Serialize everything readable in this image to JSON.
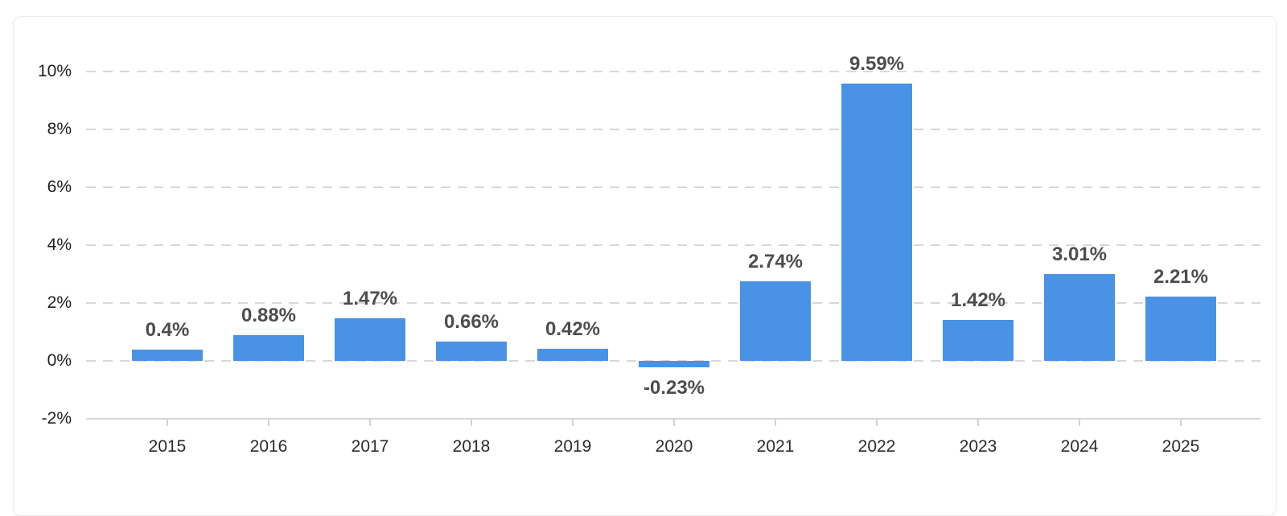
{
  "chart_data": {
    "type": "bar",
    "title": "",
    "xlabel": "",
    "ylabel": "",
    "categories": [
      "2015",
      "2016",
      "2017",
      "2018",
      "2019",
      "2020",
      "2021",
      "2022",
      "2023",
      "2024",
      "2025"
    ],
    "values": [
      0.4,
      0.88,
      1.47,
      0.66,
      0.42,
      -0.23,
      2.74,
      9.59,
      1.42,
      3.01,
      2.21
    ],
    "value_labels": [
      "0.4%",
      "0.88%",
      "1.47%",
      "0.66%",
      "0.42%",
      "-0.23%",
      "2.74%",
      "9.59%",
      "1.42%",
      "3.01%",
      "2.21%"
    ],
    "ylim": [
      -2,
      10
    ],
    "yticks": [
      -2,
      0,
      2,
      4,
      6,
      8,
      10
    ],
    "ytick_labels": [
      "-2%",
      "0%",
      "2%",
      "4%",
      "6%",
      "8%",
      "10%"
    ],
    "grid": "horizontal-dashed",
    "legend": "none",
    "colors": {
      "bar": "#4a92e5",
      "value_label": "#4d4d4d",
      "axis_text": "#2b2b2b",
      "ytick_text": "#1f1f1f",
      "gridline": "#d8d8d8",
      "axis_line": "#d6d6d6",
      "card_border": "#ececec",
      "background": "#ffffff"
    }
  }
}
